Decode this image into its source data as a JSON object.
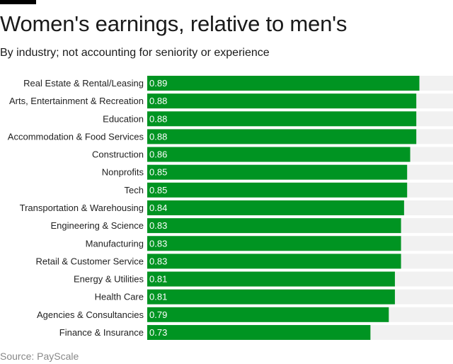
{
  "chart_data": {
    "type": "bar",
    "orientation": "horizontal",
    "title": "Women's earnings, relative to men's",
    "subtitle": "By industry; not accounting for seniority or experience",
    "source": "Source: PayScale",
    "categories": [
      "Real Estate & Rental/Leasing",
      "Arts, Entertainment & Recreation",
      "Education",
      "Accommodation & Food Services",
      "Construction",
      "Nonprofits",
      "Tech",
      "Transportation & Warehousing",
      "Engineering & Science",
      "Manufacturing",
      "Retail & Customer Service",
      "Energy & Utilities",
      "Health Care",
      "Agencies & Consultancies",
      "Finance & Insurance"
    ],
    "values": [
      0.89,
      0.88,
      0.88,
      0.88,
      0.86,
      0.85,
      0.85,
      0.84,
      0.83,
      0.83,
      0.83,
      0.81,
      0.81,
      0.79,
      0.73
    ],
    "labels": [
      "0.89",
      "0.88",
      "0.88",
      "0.88",
      "0.86",
      "0.85",
      "0.85",
      "0.84",
      "0.83",
      "0.83",
      "0.83",
      "0.81",
      "0.81",
      "0.79",
      "0.73"
    ],
    "xlim": [
      0,
      1
    ],
    "grid": false,
    "legend": "none",
    "colors": {
      "bar": "#009422",
      "track": "#f1f1f1",
      "label": "#ffffff"
    }
  }
}
